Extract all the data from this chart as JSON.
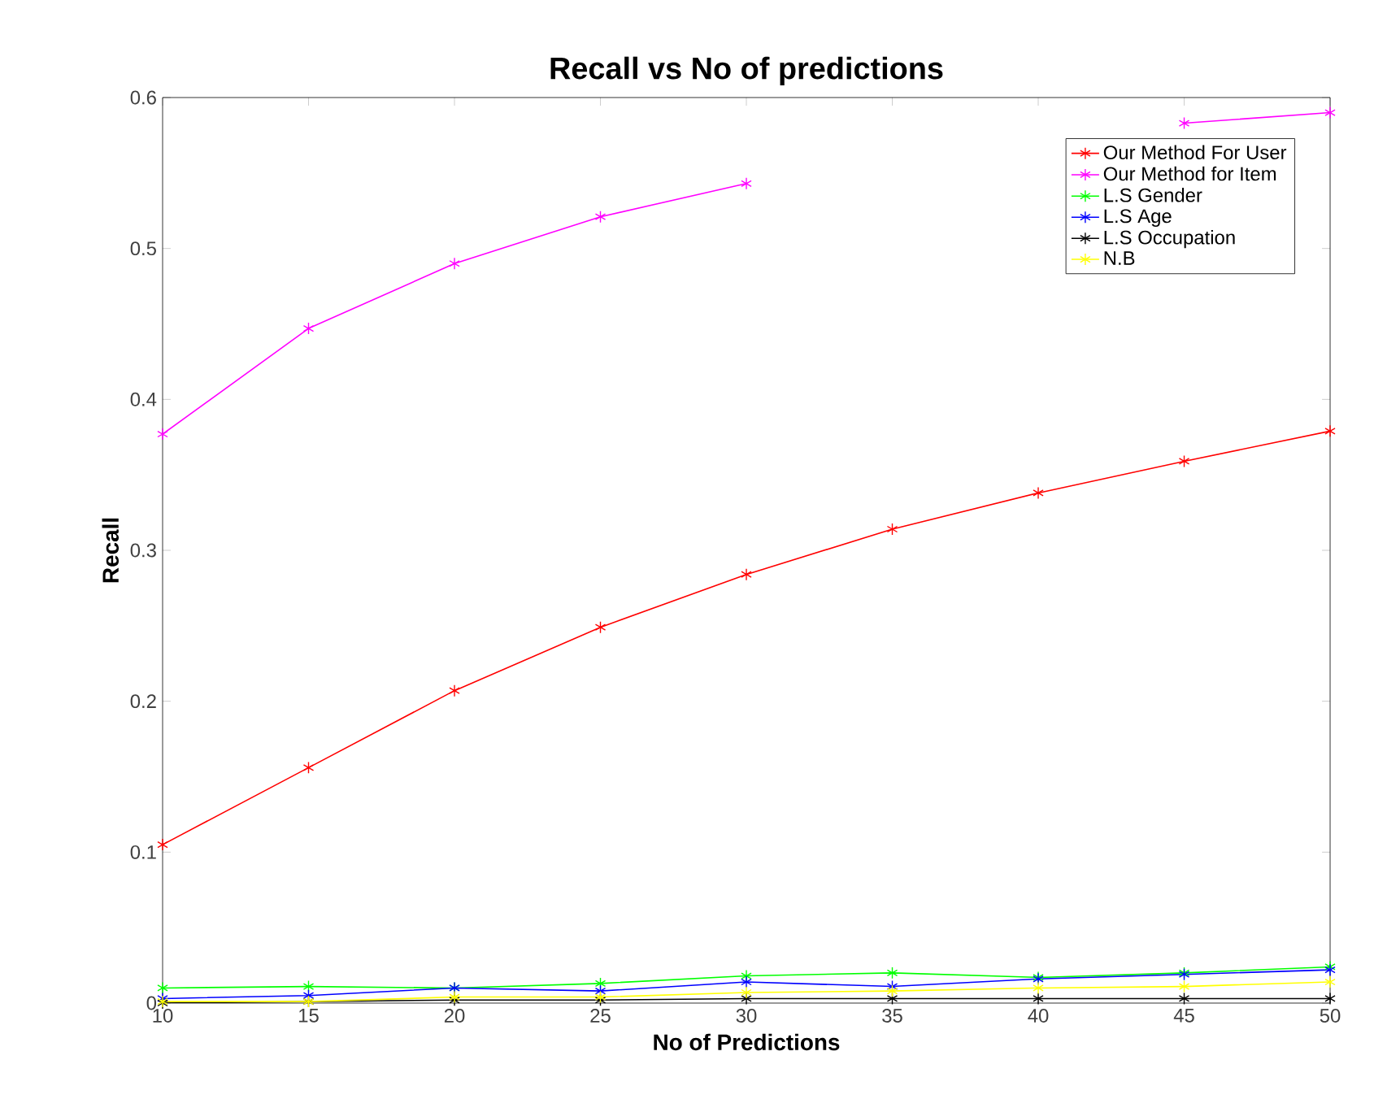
{
  "chart_data": {
    "type": "line",
    "title": "Recall vs No of predictions",
    "xlabel": "No of Predictions",
    "ylabel": "Recall",
    "x": [
      10,
      15,
      20,
      25,
      30,
      35,
      40,
      45,
      50
    ],
    "series": [
      {
        "name": "Our Method For User",
        "color": "#ff0000",
        "values": [
          0.105,
          0.156,
          0.207,
          0.249,
          0.284,
          0.314,
          0.338,
          0.359,
          0.379
        ]
      },
      {
        "name": "Our Method for Item",
        "color": "#ff00ff",
        "values": [
          0.377,
          0.447,
          0.49,
          0.521,
          0.543,
          null,
          null,
          0.583,
          0.59
        ]
      },
      {
        "name": "L.S Gender",
        "color": "#00ff00",
        "values": [
          0.01,
          0.011,
          0.01,
          0.013,
          0.018,
          0.02,
          0.017,
          0.02,
          0.024
        ]
      },
      {
        "name": "L.S Age",
        "color": "#0000ff",
        "values": [
          0.003,
          0.005,
          0.01,
          0.008,
          0.014,
          0.011,
          0.016,
          0.019,
          0.022
        ]
      },
      {
        "name": "L.S Occupation",
        "color": "#000000",
        "values": [
          0.0,
          0.001,
          0.002,
          0.002,
          0.003,
          0.003,
          0.003,
          0.003,
          0.003
        ]
      },
      {
        "name": "N.B",
        "color": "#ffff00",
        "values": [
          0.001,
          0.001,
          0.004,
          0.004,
          0.007,
          0.008,
          0.01,
          0.011,
          0.014
        ]
      }
    ],
    "xlim": [
      10,
      50
    ],
    "ylim": [
      0,
      0.6
    ],
    "xticks": [
      10,
      15,
      20,
      25,
      30,
      35,
      40,
      45,
      50
    ],
    "yticks": [
      0,
      0.1,
      0.2,
      0.3,
      0.4,
      0.5,
      0.6
    ],
    "grid": false,
    "legend": "top right",
    "marker": "cross",
    "line_style": "solid"
  }
}
